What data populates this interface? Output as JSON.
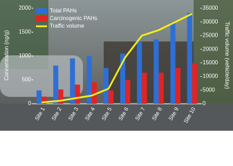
{
  "chart_data": {
    "type": "bar",
    "categories": [
      "Site 1",
      "Site 2",
      "Site 3",
      "Site 4",
      "Site 5",
      "Site 6",
      "Site 7",
      "Site 8",
      "Site 9",
      "Site 10"
    ],
    "series": [
      {
        "name": "Total PAHs",
        "color": "#2e6fd6",
        "values": [
          280,
          800,
          950,
          1000,
          750,
          1050,
          1300,
          1350,
          1700,
          1900
        ]
      },
      {
        "name": "Carcinogenic PAHs",
        "color": "#e02424",
        "values": [
          150,
          300,
          400,
          450,
          280,
          500,
          650,
          650,
          750,
          850
        ]
      },
      {
        "name": "Traffic volume",
        "color": "#f5ef1a",
        "type": "line",
        "axis": "y2",
        "values": [
          500,
          1000,
          2000,
          3000,
          5500,
          17000,
          25000,
          27000,
          30000,
          33000
        ]
      }
    ],
    "ylabel": "Concentration (ng/g)",
    "y2label": "Traffic  volume (vehicle/day)",
    "ylim": [
      0,
      2000
    ],
    "yticks": [
      0,
      500,
      1000,
      1500,
      2000
    ],
    "y2lim": [
      0,
      35000
    ],
    "y2ticks": [
      0,
      5000,
      10000,
      15000,
      20000,
      25000,
      30000,
      35000
    ],
    "legend": "upper-left"
  }
}
